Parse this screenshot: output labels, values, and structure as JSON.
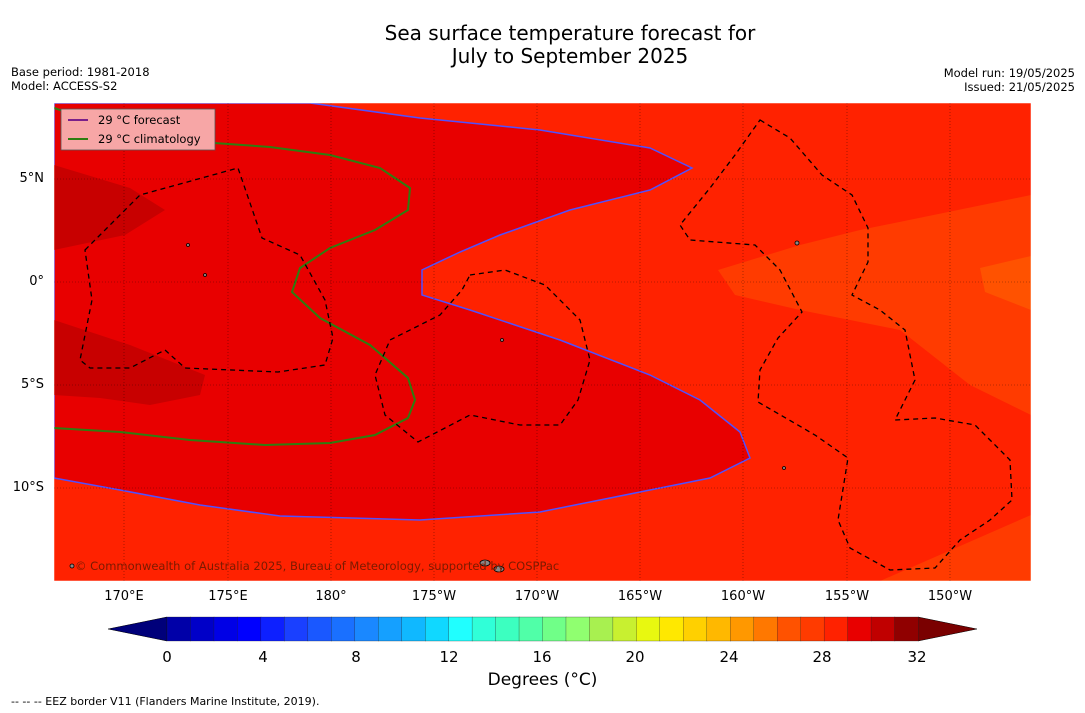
{
  "title": {
    "line1": "Sea surface temperature forecast for",
    "line2": "July to September 2025"
  },
  "meta": {
    "base_period": "Base period: 1981-2018",
    "model": "Model: ACCESS-S2",
    "model_run": "Model run: 19/05/2025",
    "issued": "Issued: 21/05/2025"
  },
  "legend": {
    "forecast": "29 °C  forecast",
    "climatology": "29 °C  climatology"
  },
  "credit": "© Commonwealth of Australia 2025, Bureau of Meteorology, supported by COSPPac",
  "axes": {
    "lon_labels": [
      "170°E",
      "175°E",
      "180°",
      "175°W",
      "170°W",
      "165°W",
      "160°W",
      "155°W",
      "150°W"
    ],
    "lat_labels": [
      "5°N",
      "0°",
      "5°S",
      "10°S"
    ]
  },
  "colorbar": {
    "ticks": [
      "0",
      "4",
      "8",
      "12",
      "16",
      "20",
      "24",
      "28",
      "32"
    ],
    "title": "Degrees (°C)"
  },
  "eez_note": "--  --  -- EEZ border V11 (Flanders Marine Institute, 2019)."
}
